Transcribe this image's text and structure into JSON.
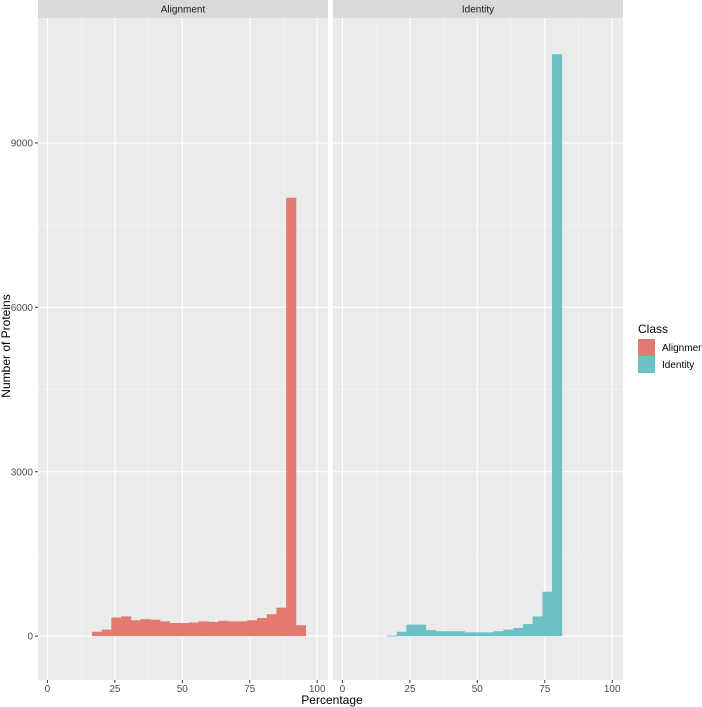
{
  "chart_data": {
    "type": "bar",
    "subtype": "faceted-histogram",
    "xlabel": "Percentage",
    "ylabel": "Number of Proteins",
    "xlim": [
      -3.5,
      104
    ],
    "ylim": [
      -800,
      11280
    ],
    "x_ticks": [
      0,
      25,
      50,
      75,
      100
    ],
    "y_ticks": [
      0,
      3000,
      6000,
      9000
    ],
    "grid": true,
    "bin_width": 3.6,
    "legend": {
      "title": "Class",
      "placement": "right",
      "entries": [
        {
          "label": "Alignment",
          "color": "#E27A6F"
        },
        {
          "label": "Identity",
          "color": "#6BC1C4"
        }
      ]
    },
    "panels": [
      {
        "strip_label": "Alignment",
        "color": "#E27A6F",
        "bins": [
          {
            "x": 16.5,
            "count": 80
          },
          {
            "x": 20.1,
            "count": 120
          },
          {
            "x": 23.7,
            "count": 340
          },
          {
            "x": 27.3,
            "count": 360
          },
          {
            "x": 30.9,
            "count": 290
          },
          {
            "x": 34.5,
            "count": 310
          },
          {
            "x": 38.1,
            "count": 300
          },
          {
            "x": 41.7,
            "count": 270
          },
          {
            "x": 45.3,
            "count": 240
          },
          {
            "x": 48.9,
            "count": 240
          },
          {
            "x": 52.5,
            "count": 250
          },
          {
            "x": 56.1,
            "count": 270
          },
          {
            "x": 59.7,
            "count": 260
          },
          {
            "x": 63.3,
            "count": 280
          },
          {
            "x": 66.9,
            "count": 270
          },
          {
            "x": 70.5,
            "count": 270
          },
          {
            "x": 74.1,
            "count": 290
          },
          {
            "x": 77.7,
            "count": 330
          },
          {
            "x": 81.3,
            "count": 400
          },
          {
            "x": 84.9,
            "count": 520
          },
          {
            "x": 88.5,
            "count": 8000
          },
          {
            "x": 92.1,
            "count": 200
          },
          {
            "x": 95.7,
            "count": 0
          }
        ]
      },
      {
        "strip_label": "Identity",
        "color": "#6BC1C4",
        "bins": [
          {
            "x": 16.5,
            "count": 10
          },
          {
            "x": 20.1,
            "count": 80
          },
          {
            "x": 23.7,
            "count": 210
          },
          {
            "x": 27.3,
            "count": 210
          },
          {
            "x": 30.9,
            "count": 110
          },
          {
            "x": 34.5,
            "count": 90
          },
          {
            "x": 38.1,
            "count": 90
          },
          {
            "x": 41.7,
            "count": 90
          },
          {
            "x": 45.3,
            "count": 70
          },
          {
            "x": 48.9,
            "count": 70
          },
          {
            "x": 52.5,
            "count": 70
          },
          {
            "x": 56.1,
            "count": 90
          },
          {
            "x": 59.7,
            "count": 120
          },
          {
            "x": 63.3,
            "count": 150
          },
          {
            "x": 66.9,
            "count": 220
          },
          {
            "x": 70.5,
            "count": 360
          },
          {
            "x": 74.1,
            "count": 810
          },
          {
            "x": 77.7,
            "count": 10620
          }
        ]
      }
    ]
  }
}
